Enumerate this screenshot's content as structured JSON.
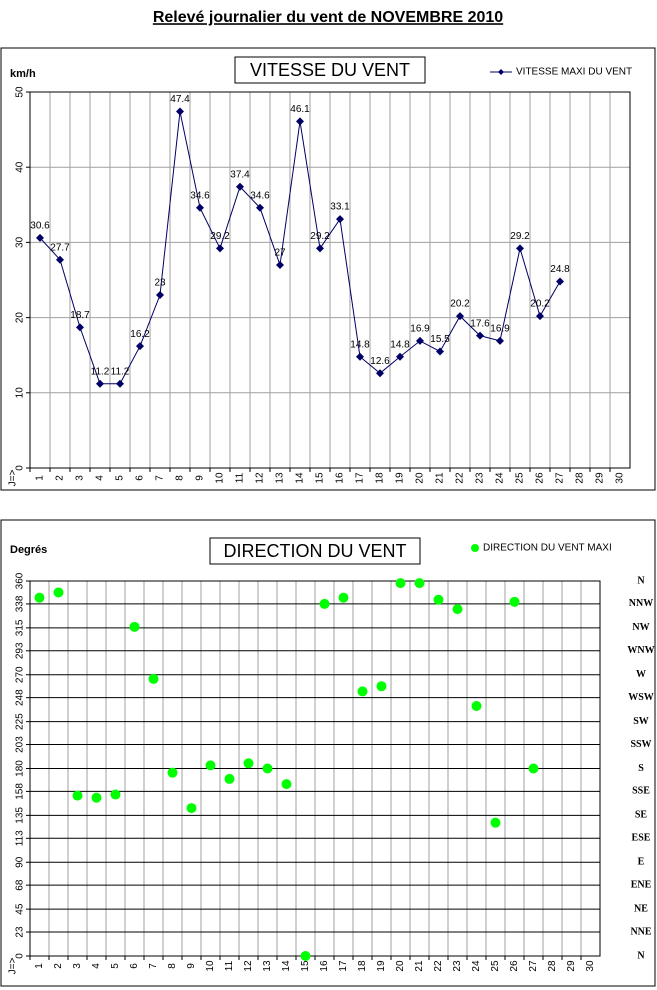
{
  "title": "Relevé journalier du vent de NOVEMBRE 2010",
  "chart_data": [
    {
      "type": "line",
      "title": "VITESSE DU VENT",
      "ylabel": "km/h",
      "xlabel": "J=>",
      "categories": [
        "1",
        "2",
        "3",
        "4",
        "5",
        "6",
        "7",
        "8",
        "9",
        "10",
        "11",
        "12",
        "13",
        "14",
        "15",
        "16",
        "17",
        "18",
        "19",
        "20",
        "21",
        "22",
        "23",
        "24",
        "25",
        "26",
        "27",
        "28",
        "29",
        "30"
      ],
      "series": [
        {
          "name": "VITESSE MAXI DU VENT",
          "color": "#000066",
          "values": [
            30.6,
            27.7,
            18.7,
            11.2,
            11.2,
            16.2,
            23,
            47.4,
            34.6,
            29.2,
            37.4,
            34.6,
            27,
            46.1,
            29.2,
            33.1,
            14.8,
            12.6,
            14.8,
            16.9,
            15.5,
            20.2,
            17.6,
            16.9,
            29.2,
            20.2,
            24.8,
            null,
            null,
            null
          ]
        }
      ],
      "ylim": [
        0,
        50
      ],
      "yticks": [
        0,
        10,
        20,
        30,
        40,
        50
      ],
      "grid": true,
      "grid_color": "#a0a0a0",
      "legend": "top-right",
      "data_labels": true
    },
    {
      "type": "scatter",
      "title": "DIRECTION DU VENT",
      "ylabel": "Degrés",
      "xlabel": "J=>",
      "categories": [
        "1",
        "2",
        "3",
        "4",
        "5",
        "6",
        "7",
        "8",
        "9",
        "10",
        "11",
        "12",
        "13",
        "14",
        "15",
        "16",
        "17",
        "18",
        "19",
        "20",
        "21",
        "22",
        "23",
        "24",
        "25",
        "26",
        "27",
        "28",
        "29",
        "30"
      ],
      "series": [
        {
          "name": "DIRECTION DU VENT MAXI",
          "color": "#00ff00",
          "values": [
            344,
            349,
            154,
            152,
            155,
            316,
            266,
            176,
            142,
            183,
            170,
            185,
            180,
            165,
            0,
            338,
            344,
            254,
            259,
            358,
            358,
            342,
            333,
            240,
            128,
            340,
            180,
            null,
            null,
            null
          ]
        }
      ],
      "ylim": [
        0,
        360
      ],
      "yticks": [
        0,
        23,
        45,
        68,
        90,
        113,
        135,
        158,
        180,
        203,
        225,
        248,
        270,
        293,
        315,
        338,
        360
      ],
      "y2lim": [
        0,
        360
      ],
      "y2ticks": [
        {
          "value": 0,
          "label": "N"
        },
        {
          "value": 23,
          "label": "NNE"
        },
        {
          "value": 45,
          "label": "NE"
        },
        {
          "value": 68,
          "label": "ENE"
        },
        {
          "value": 90,
          "label": "E"
        },
        {
          "value": 113,
          "label": "ESE"
        },
        {
          "value": 135,
          "label": "SE"
        },
        {
          "value": 158,
          "label": "SSE"
        },
        {
          "value": 180,
          "label": "S"
        },
        {
          "value": 203,
          "label": "SSW"
        },
        {
          "value": 225,
          "label": "SW"
        },
        {
          "value": 248,
          "label": "WSW"
        },
        {
          "value": 270,
          "label": "W"
        },
        {
          "value": 293,
          "label": "WNW"
        },
        {
          "value": 315,
          "label": "NW"
        },
        {
          "value": 338,
          "label": "NNW"
        },
        {
          "value": 360,
          "label": "N"
        }
      ],
      "grid": true,
      "grid_color": "#000000",
      "legend": "top-right"
    }
  ]
}
